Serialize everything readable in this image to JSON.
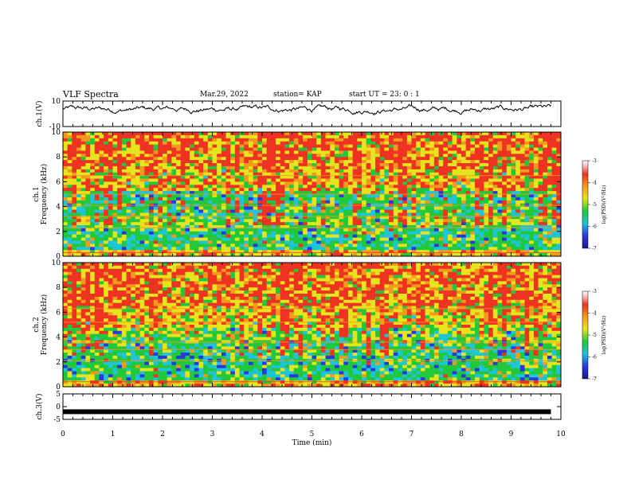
{
  "header": {
    "title": "VLF Spectra",
    "date": "Mar.29, 2022",
    "station": "station= KAP",
    "start_ut": "start  UT =   23: 0  : 1"
  },
  "colors": {
    "red": "#ee3322",
    "orange": "#f29a1e",
    "yellow": "#e6e41c",
    "green": "#22c83c",
    "cyan": "#1fc4d8",
    "blue": "#2a36e0",
    "navy": "#1a1a8a",
    "black": "#000000"
  },
  "chart_data": [
    {
      "type": "line",
      "panel": "ch1-waveform",
      "ylabel": "ch.1(V)",
      "ylim": [
        -10,
        10
      ],
      "yticks": [
        "10",
        "-10"
      ],
      "xlim": [
        0,
        10
      ],
      "description_values": "noisy waveform mostly between -2 and 9 V"
    },
    {
      "type": "heatmap",
      "panel": "ch1-spectrogram",
      "series_label": "ch.1",
      "ylabel": "Frequency (kHz)",
      "ylim": [
        0,
        10
      ],
      "yticks": [
        "0",
        "2",
        "4",
        "6",
        "8",
        "10"
      ],
      "xlim": [
        0,
        10
      ],
      "colorbar": {
        "label": "log(PSD)(V²/Hz)",
        "range": [
          -7,
          -3
        ],
        "ticks": [
          "-3",
          "-4",
          "-5",
          "-6",
          "-7"
        ]
      }
    },
    {
      "type": "heatmap",
      "panel": "ch2-spectrogram",
      "series_label": "ch.2",
      "ylabel": "Frequency (kHz)",
      "ylim": [
        0,
        10
      ],
      "yticks": [
        "0",
        "2",
        "4",
        "6",
        "8",
        "10"
      ],
      "xlim": [
        0,
        10
      ],
      "colorbar": {
        "label": "log(PSD)(V²/Hz)",
        "range": [
          -7,
          -3
        ],
        "ticks": [
          "-3",
          "-4",
          "-5",
          "-6",
          "-7"
        ]
      }
    },
    {
      "type": "line",
      "panel": "ch3-waveform",
      "ylabel": "ch.3(V)",
      "ylim": [
        -5,
        5
      ],
      "yticks": [
        "5",
        "0",
        "-5"
      ],
      "xlim": [
        0,
        10
      ],
      "values": [
        -2,
        -2
      ]
    }
  ],
  "x_axis": {
    "label": "Time  (min)",
    "ticks": [
      "0",
      "1",
      "2",
      "3",
      "4",
      "5",
      "6",
      "7",
      "8",
      "9",
      "10"
    ]
  }
}
